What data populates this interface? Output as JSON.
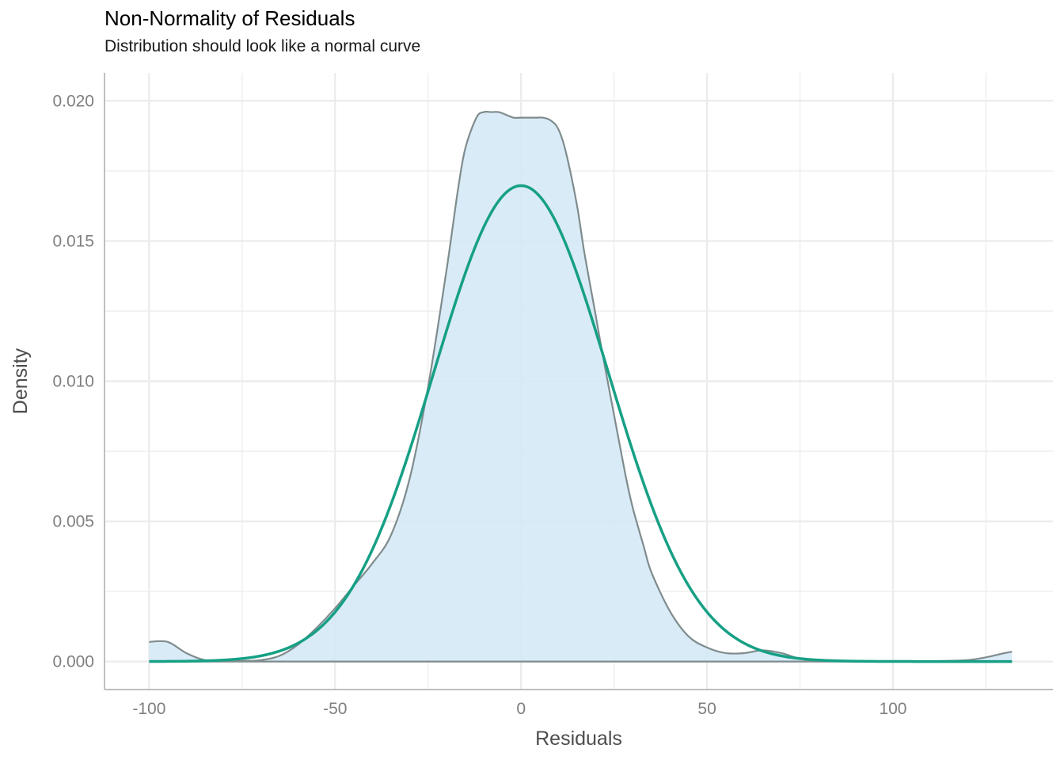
{
  "chart_data": {
    "type": "area",
    "title": "Non-Normality of Residuals",
    "subtitle": "Distribution should look like a normal curve",
    "xlabel": "Residuals",
    "ylabel": "Density",
    "xlim": [
      -112,
      143
    ],
    "ylim": [
      -0.001,
      0.021
    ],
    "x_ticks": [
      -100,
      -50,
      0,
      50,
      100
    ],
    "x_tick_labels": [
      "-100",
      "-50",
      "0",
      "50",
      "100"
    ],
    "y_ticks": [
      0,
      0.005,
      0.01,
      0.015,
      0.02
    ],
    "y_tick_labels": [
      "0.000",
      "0.005",
      "0.010",
      "0.015",
      "0.020"
    ],
    "grid": true,
    "colors": {
      "density_fill": "#d6e9f7",
      "density_line": "#7f8c8d",
      "normal_line": "#16a085",
      "grid": "#ebebeb",
      "axis": "#bfbfbf"
    },
    "series": [
      {
        "kind": "density",
        "x": [
          -100,
          -95,
          -90,
          -85,
          -80,
          -75,
          -70,
          -65,
          -60,
          -55,
          -50,
          -45,
          -40,
          -35,
          -30,
          -25,
          -20,
          -17,
          -15,
          -12,
          -10,
          -8,
          -6,
          -4,
          -2,
          0,
          2,
          4,
          6,
          8,
          10,
          12,
          15,
          17,
          20,
          22,
          25,
          28,
          30,
          33,
          35,
          40,
          45,
          50,
          55,
          60,
          65,
          70,
          75,
          80,
          90,
          100,
          110,
          120,
          125,
          130,
          132
        ],
        "y": [
          0.0007,
          0.0007,
          0.0003,
          5e-05,
          1e-05,
          2e-05,
          5e-05,
          0.0002,
          0.0006,
          0.0012,
          0.0019,
          0.0027,
          0.0035,
          0.0045,
          0.0065,
          0.0098,
          0.014,
          0.0168,
          0.0183,
          0.0194,
          0.0196,
          0.0196,
          0.0196,
          0.0195,
          0.0194,
          0.0194,
          0.0194,
          0.0194,
          0.0194,
          0.0193,
          0.019,
          0.0182,
          0.0163,
          0.0146,
          0.0124,
          0.0109,
          0.0088,
          0.0067,
          0.0055,
          0.0041,
          0.0032,
          0.0018,
          0.0009,
          0.0005,
          0.0003,
          0.0003,
          0.0004,
          0.0003,
          0.0001,
          3e-05,
          1e-05,
          1e-05,
          1e-05,
          5e-05,
          0.00015,
          0.0003,
          0.00035
        ]
      },
      {
        "kind": "normal",
        "mean": 0,
        "sd": 23.5,
        "x_range": [
          -100,
          132
        ]
      }
    ]
  }
}
